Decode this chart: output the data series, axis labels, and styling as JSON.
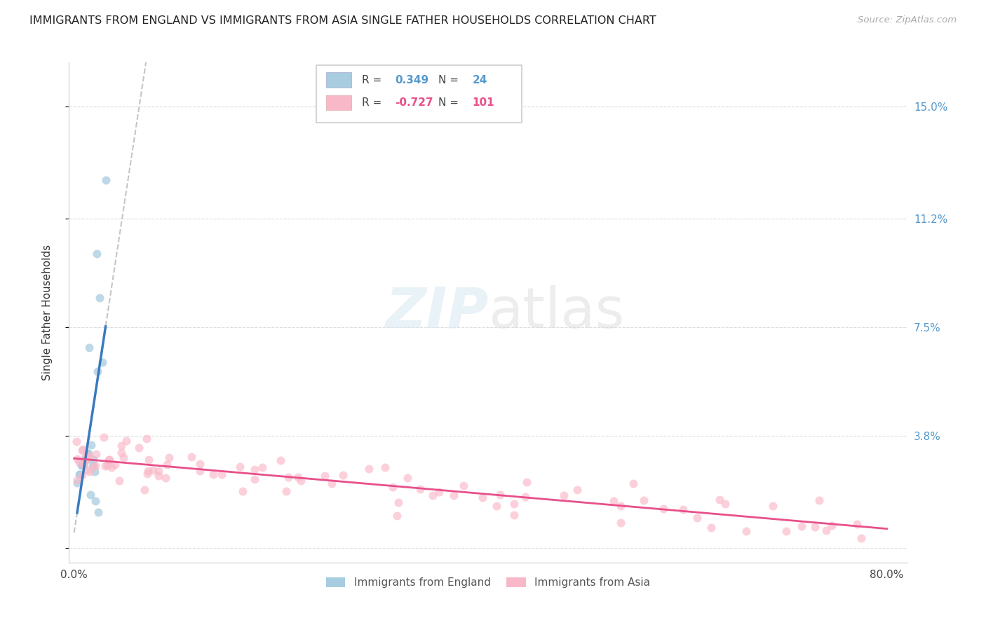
{
  "title": "IMMIGRANTS FROM ENGLAND VS IMMIGRANTS FROM ASIA SINGLE FATHER HOUSEHOLDS CORRELATION CHART",
  "source": "Source: ZipAtlas.com",
  "ylabel": "Single Father Households",
  "legend1_label": "Immigrants from England",
  "legend2_label": "Immigrants from Asia",
  "R_england": 0.349,
  "N_england": 24,
  "R_asia": -0.727,
  "N_asia": 101,
  "ylim": [
    -0.005,
    0.165
  ],
  "xlim": [
    -0.005,
    0.82
  ],
  "ytick_vals": [
    0.0,
    0.038,
    0.075,
    0.112,
    0.15
  ],
  "ytick_labels": [
    "",
    "3.8%",
    "7.5%",
    "11.2%",
    "15.0%"
  ],
  "xtick_vals": [
    0.0,
    0.1,
    0.2,
    0.3,
    0.4,
    0.5,
    0.6,
    0.7,
    0.8
  ],
  "xtick_labels": [
    "0.0%",
    "",
    "",
    "",
    "",
    "",
    "",
    "",
    "80.0%"
  ],
  "eng_x": [
    0.003,
    0.005,
    0.006,
    0.007,
    0.008,
    0.009,
    0.01,
    0.011,
    0.012,
    0.013,
    0.014,
    0.015,
    0.016,
    0.017,
    0.018,
    0.019,
    0.02,
    0.021,
    0.022,
    0.023,
    0.024,
    0.025,
    0.028,
    0.031
  ],
  "eng_y": [
    0.022,
    0.025,
    0.025,
    0.028,
    0.028,
    0.028,
    0.03,
    0.03,
    0.03,
    0.032,
    0.032,
    0.068,
    0.018,
    0.035,
    0.028,
    0.03,
    0.026,
    0.016,
    0.1,
    0.06,
    0.012,
    0.085,
    0.063,
    0.125
  ],
  "color_england": "#a8cce0",
  "color_asia": "#f9b8c8",
  "color_england_line": "#3a7abf",
  "color_asia_line": "#e8508a",
  "color_dashed": "#bbbbbb",
  "background_color": "#ffffff",
  "grid_color": "#dddddd",
  "title_color": "#222222",
  "right_label_color": "#5599cc",
  "title_fontsize": 11.5,
  "label_fontsize": 11,
  "tick_fontsize": 11,
  "source_fontsize": 9.5
}
